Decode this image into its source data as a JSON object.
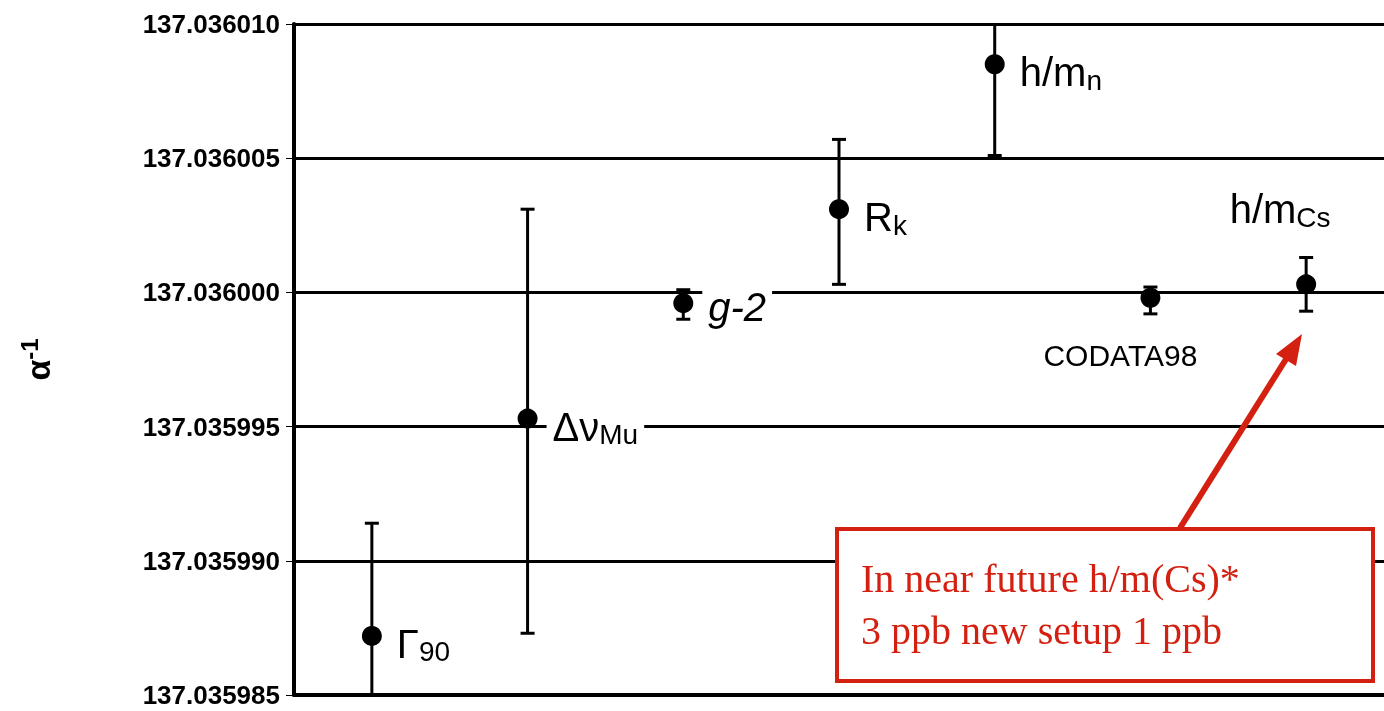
{
  "chart_data": {
    "type": "scatter",
    "ylabel": "α$^{-1}$",
    "categories": [
      null,
      null,
      null,
      null,
      null,
      null,
      null
    ],
    "ylim": [
      137.035985,
      137.03601
    ],
    "yticks": [
      {
        "value": 137.035985,
        "label": "137.035985"
      },
      {
        "value": 137.03599,
        "label": "137.035990"
      },
      {
        "value": 137.035995,
        "label": "137.035995"
      },
      {
        "value": 137.036,
        "label": "137.036000"
      },
      {
        "value": 137.036005,
        "label": "137.036005"
      },
      {
        "value": 137.03601,
        "label": "137.036010"
      }
    ],
    "grid": "y",
    "marker": "circle",
    "legend": false,
    "tick_labels": "y",
    "series": [
      {
        "name": "Γ$_{90}$",
        "color": "#000000",
        "values": [
          137.0359872,
          null,
          null,
          null,
          null,
          null,
          null
        ],
        "errors": [
          [
            137.035985,
            137.0359914
          ],
          null,
          null,
          null,
          null,
          null,
          null
        ]
      },
      {
        "name": "Δν$_{Mu}$",
        "color": "#000000",
        "values": [
          null,
          137.0359953,
          null,
          null,
          null,
          null,
          null
        ],
        "errors": [
          null,
          [
            137.0359873,
            137.0360031
          ],
          null,
          null,
          null,
          null,
          null
        ]
      },
      {
        "name": "g-2",
        "color": "#000000",
        "values": [
          null,
          null,
          137.0359996,
          null,
          null,
          null,
          null
        ],
        "errors": [
          null,
          null,
          [
            137.035999,
            137.0360001
          ],
          null,
          null,
          null,
          null
        ]
      },
      {
        "name": "R$_{k}$",
        "color": "#000000",
        "values": [
          null,
          null,
          null,
          137.0360031,
          null,
          null,
          null
        ],
        "errors": [
          null,
          null,
          null,
          [
            137.0360003,
            137.0360057
          ],
          null,
          null,
          null
        ]
      },
      {
        "name": "h/m$_{n}$",
        "color": "#000000",
        "values": [
          null,
          null,
          null,
          null,
          137.0360085,
          null,
          null
        ],
        "errors": [
          null,
          null,
          null,
          null,
          [
            137.0360051,
            137.03601
          ],
          null,
          null
        ]
      },
      {
        "name": "CODATA98",
        "color": "#000000",
        "values": [
          null,
          null,
          null,
          null,
          null,
          137.0359998,
          null
        ],
        "errors": [
          null,
          null,
          null,
          null,
          null,
          [
            137.0359992,
            137.0360002
          ],
          null
        ]
      },
      {
        "name": "h/m$_{Cs}$",
        "color": "#000000",
        "values": [
          null,
          null,
          null,
          null,
          null,
          null,
          137.0360003
        ],
        "errors": [
          null,
          null,
          null,
          null,
          null,
          null,
          [
            137.0359993,
            137.0360013
          ]
        ]
      }
    ],
    "annotations": [
      "In near future h/m(Cs)*\n3 ppb new setup 1 ppb"
    ]
  }
}
